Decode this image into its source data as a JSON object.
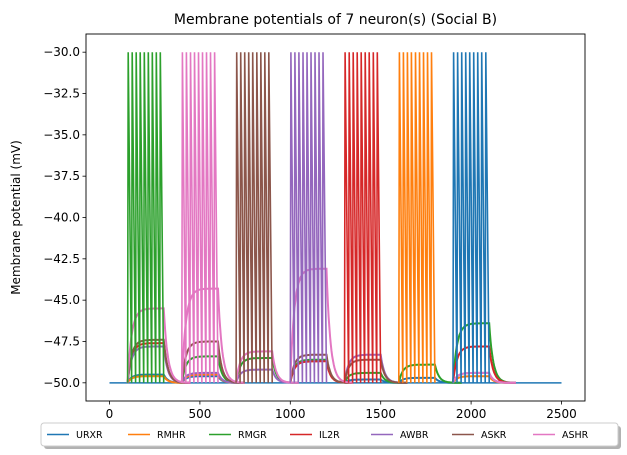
{
  "chart_data": {
    "type": "line",
    "title": "Membrane potentials of 7 neuron(s) (Social B)",
    "xlabel": "",
    "ylabel": "Membrane potential (mV)",
    "xlim": [
      -130,
      2630
    ],
    "ylim": [
      -51.1,
      -28.9
    ],
    "xticks": [
      0,
      500,
      1000,
      1500,
      2000,
      2500
    ],
    "yticks": [
      -50.0,
      -47.5,
      -45.0,
      -42.5,
      -40.0,
      -37.5,
      -35.0,
      -32.5,
      -30.0
    ],
    "ytick_labels": [
      "−50.0",
      "−47.5",
      "−45.0",
      "−42.5",
      "−40.0",
      "−37.5",
      "−35.0",
      "−32.5",
      "−30.0"
    ],
    "xtick_labels": [
      "0",
      "500",
      "1000",
      "1500",
      "2000",
      "2500"
    ],
    "resting_potential": -50.0,
    "spike_peak": -30.0,
    "legend_position": "below, centered, 7 columns",
    "series": [
      {
        "name": "URXR",
        "color": "#1f77b4",
        "bursts": [
          {
            "t_on": 1900,
            "t_off": 2100,
            "spikes": true
          },
          {
            "t_on": 1600,
            "t_off": 1800,
            "plateau": -49.7
          },
          {
            "t_on": 1300,
            "t_off": 1500,
            "plateau": -49.8
          },
          {
            "t_on": 400,
            "t_off": 600,
            "plateau": -49.6
          },
          {
            "t_on": 100,
            "t_off": 300,
            "plateau": -49.5
          }
        ]
      },
      {
        "name": "RMHR",
        "color": "#ff7f0e",
        "bursts": [
          {
            "t_on": 1600,
            "t_off": 1800,
            "spikes": true
          },
          {
            "t_on": 1900,
            "t_off": 2100,
            "plateau": -49.6
          },
          {
            "t_on": 400,
            "t_off": 600,
            "plateau": -49.5
          },
          {
            "t_on": 100,
            "t_off": 300,
            "plateau": -49.6
          }
        ]
      },
      {
        "name": "RMGR",
        "color": "#2ca02c",
        "bursts": [
          {
            "t_on": 100,
            "t_off": 300,
            "spikes": true
          },
          {
            "t_on": 1900,
            "t_off": 2100,
            "plateau": -46.4
          },
          {
            "t_on": 1600,
            "t_off": 1800,
            "plateau": -48.9
          },
          {
            "t_on": 1300,
            "t_off": 1500,
            "plateau": -49.4
          },
          {
            "t_on": 1000,
            "t_off": 1200,
            "plateau": -48.6
          },
          {
            "t_on": 700,
            "t_off": 900,
            "plateau": -48.5
          },
          {
            "t_on": 400,
            "t_off": 600,
            "plateau": -48.4
          }
        ]
      },
      {
        "name": "IL2R",
        "color": "#d62728",
        "bursts": [
          {
            "t_on": 1300,
            "t_off": 1500,
            "spikes": true
          },
          {
            "t_on": 1900,
            "t_off": 2100,
            "plateau": -47.8
          },
          {
            "t_on": 1000,
            "t_off": 1200,
            "plateau": -48.7
          },
          {
            "t_on": 100,
            "t_off": 300,
            "plateau": -47.6
          }
        ]
      },
      {
        "name": "AWBR",
        "color": "#9467bd",
        "bursts": [
          {
            "t_on": 1000,
            "t_off": 1200,
            "spikes": true
          },
          {
            "t_on": 1300,
            "t_off": 1500,
            "plateau": -48.3
          },
          {
            "t_on": 1900,
            "t_off": 2100,
            "plateau": -49.4
          },
          {
            "t_on": 700,
            "t_off": 900,
            "plateau": -49.2
          },
          {
            "t_on": 400,
            "t_off": 600,
            "plateau": -49.4
          },
          {
            "t_on": 100,
            "t_off": 300,
            "plateau": -47.8
          }
        ]
      },
      {
        "name": "ASKR",
        "color": "#8c564b",
        "bursts": [
          {
            "t_on": 700,
            "t_off": 900,
            "spikes": true
          },
          {
            "t_on": 400,
            "t_off": 600,
            "plateau": -47.5
          },
          {
            "t_on": 100,
            "t_off": 300,
            "plateau": -47.4
          },
          {
            "t_on": 1000,
            "t_off": 1200,
            "plateau": -48.3
          },
          {
            "t_on": 1300,
            "t_off": 1500,
            "plateau": -48.6
          }
        ]
      },
      {
        "name": "ASHR",
        "color": "#e377c2",
        "bursts": [
          {
            "t_on": 400,
            "t_off": 600,
            "spikes": true
          },
          {
            "t_on": 100,
            "t_off": 300,
            "plateau": -45.5
          },
          {
            "t_on": 400,
            "t_off": 600,
            "plateau": -44.3
          },
          {
            "t_on": 700,
            "t_off": 900,
            "plateau": -48.1
          },
          {
            "t_on": 1000,
            "t_off": 1200,
            "plateau": -43.1
          },
          {
            "t_on": 1900,
            "t_off": 2100,
            "plateau": -49.4
          }
        ]
      }
    ]
  }
}
